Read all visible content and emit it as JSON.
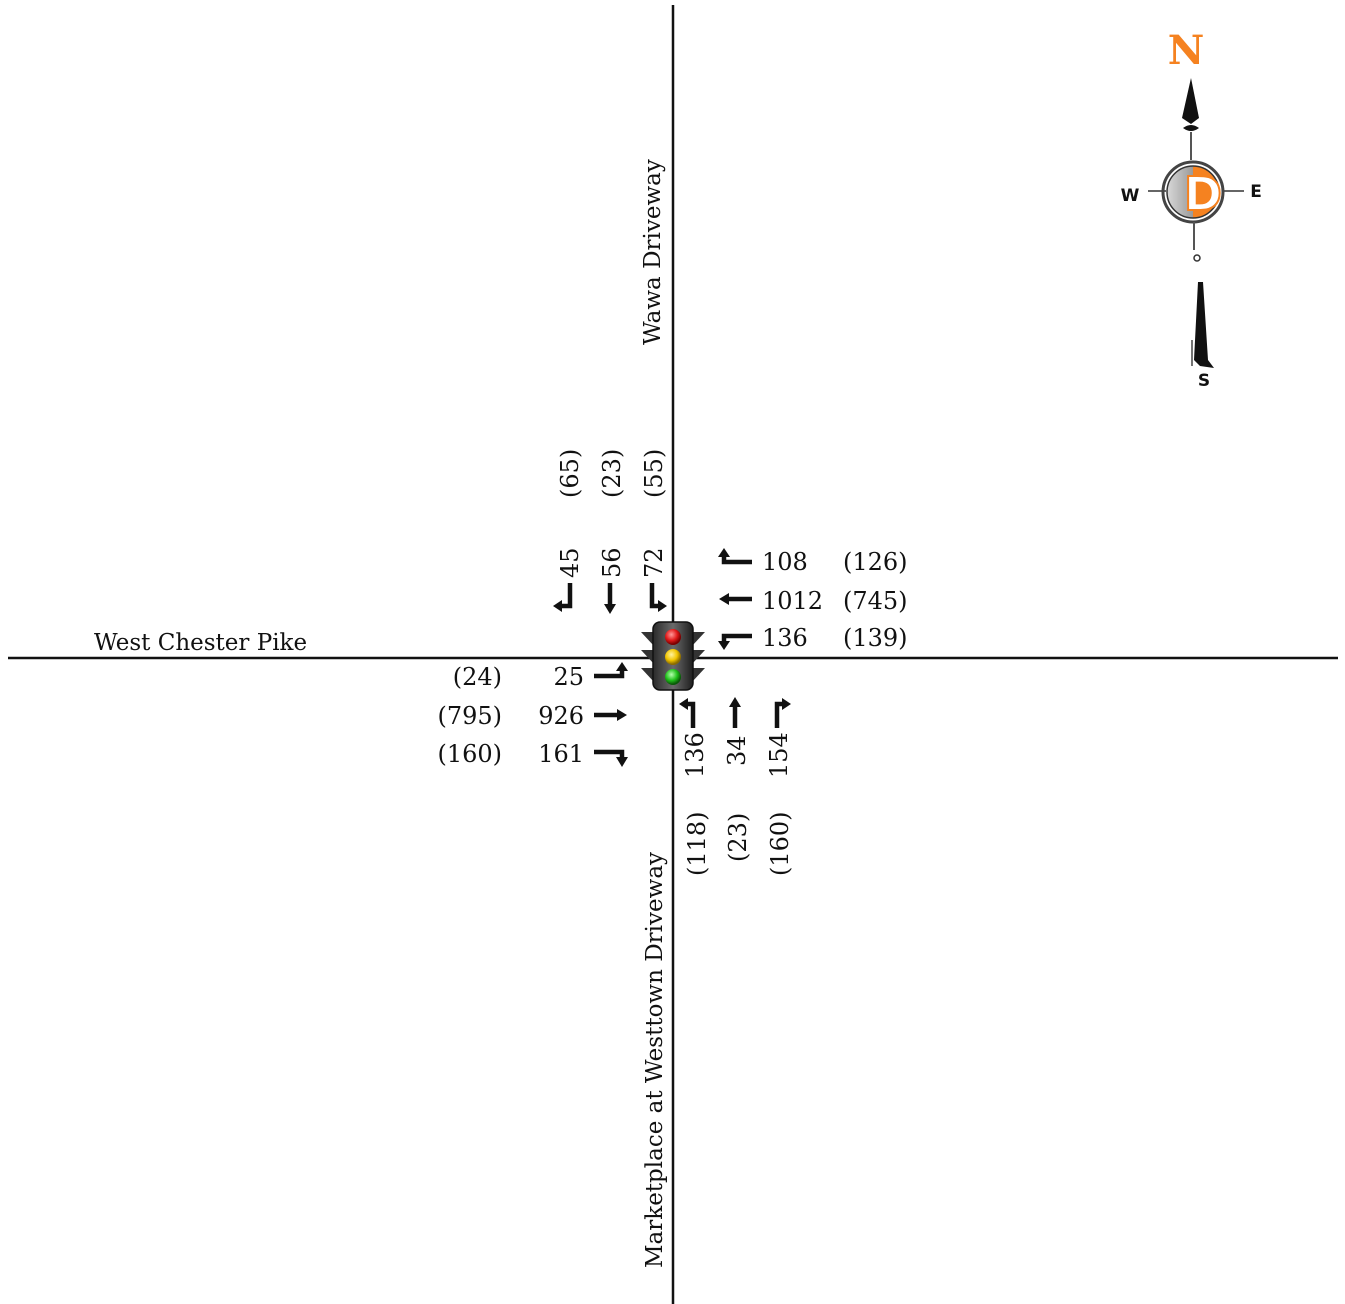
{
  "roads": {
    "north": "Wawa Driveway",
    "west": "West Chester Pike",
    "south": "Marketplace at Westtown Driveway"
  },
  "compass": {
    "n": "N",
    "d": "D",
    "w": "W",
    "e": "E",
    "s": "S",
    "accent": "#f58220"
  },
  "control": {
    "type": "traffic-signal-icon"
  },
  "volumes": {
    "southbound": {
      "right": {
        "am": "45",
        "pm": "(65)"
      },
      "through": {
        "am": "56",
        "pm": "(23)"
      },
      "left": {
        "am": "72",
        "pm": "(55)"
      }
    },
    "westbound": {
      "left": {
        "am": "108",
        "pm": "(126)"
      },
      "through": {
        "am": "1012",
        "pm": "(745)"
      },
      "right": {
        "am": "136",
        "pm": "(139)"
      }
    },
    "eastbound": {
      "left": {
        "am": "25",
        "pm": "(24)"
      },
      "through": {
        "am": "926",
        "pm": "(795)"
      },
      "right": {
        "am": "161",
        "pm": "(160)"
      }
    },
    "northbound": {
      "left": {
        "am": "136",
        "pm": "(118)"
      },
      "through": {
        "am": "34",
        "pm": "(23)"
      },
      "right": {
        "am": "154",
        "pm": "(160)"
      }
    }
  }
}
